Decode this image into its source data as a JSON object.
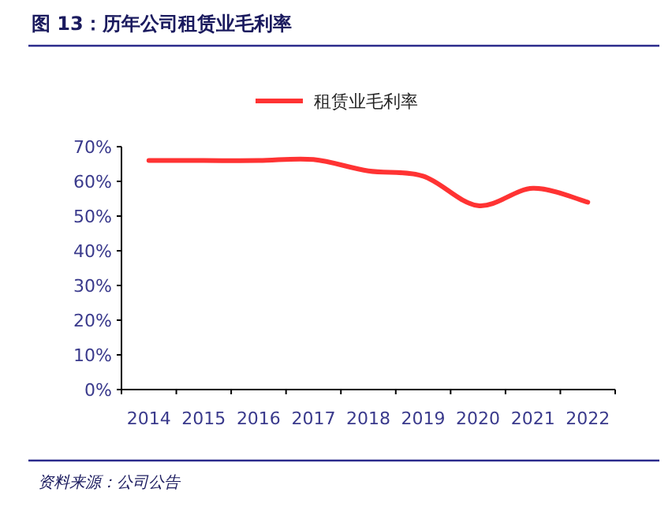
{
  "chart_data": {
    "type": "line",
    "title": "图 13：历年公司租赁业毛利率",
    "categories": [
      "2014",
      "2015",
      "2016",
      "2017",
      "2018",
      "2019",
      "2020",
      "2021",
      "2022"
    ],
    "series": [
      {
        "name": "租赁业毛利率",
        "color": "#ff3333",
        "values": [
          66,
          66,
          66,
          66.3,
          63,
          61.5,
          53,
          58,
          54
        ]
      }
    ],
    "ylim": [
      0,
      70
    ],
    "yticks": [
      {
        "value": 0,
        "label": "0%"
      },
      {
        "value": 10,
        "label": "10%"
      },
      {
        "value": 20,
        "label": "20%"
      },
      {
        "value": 30,
        "label": "30%"
      },
      {
        "value": 40,
        "label": "40%"
      },
      {
        "value": 50,
        "label": "50%"
      },
      {
        "value": 60,
        "label": "60%"
      },
      {
        "value": 70,
        "label": "70%"
      }
    ],
    "legend": "top",
    "marker": "none",
    "line_style": "solid",
    "annotations": [
      "资料来源：公司公告"
    ]
  }
}
